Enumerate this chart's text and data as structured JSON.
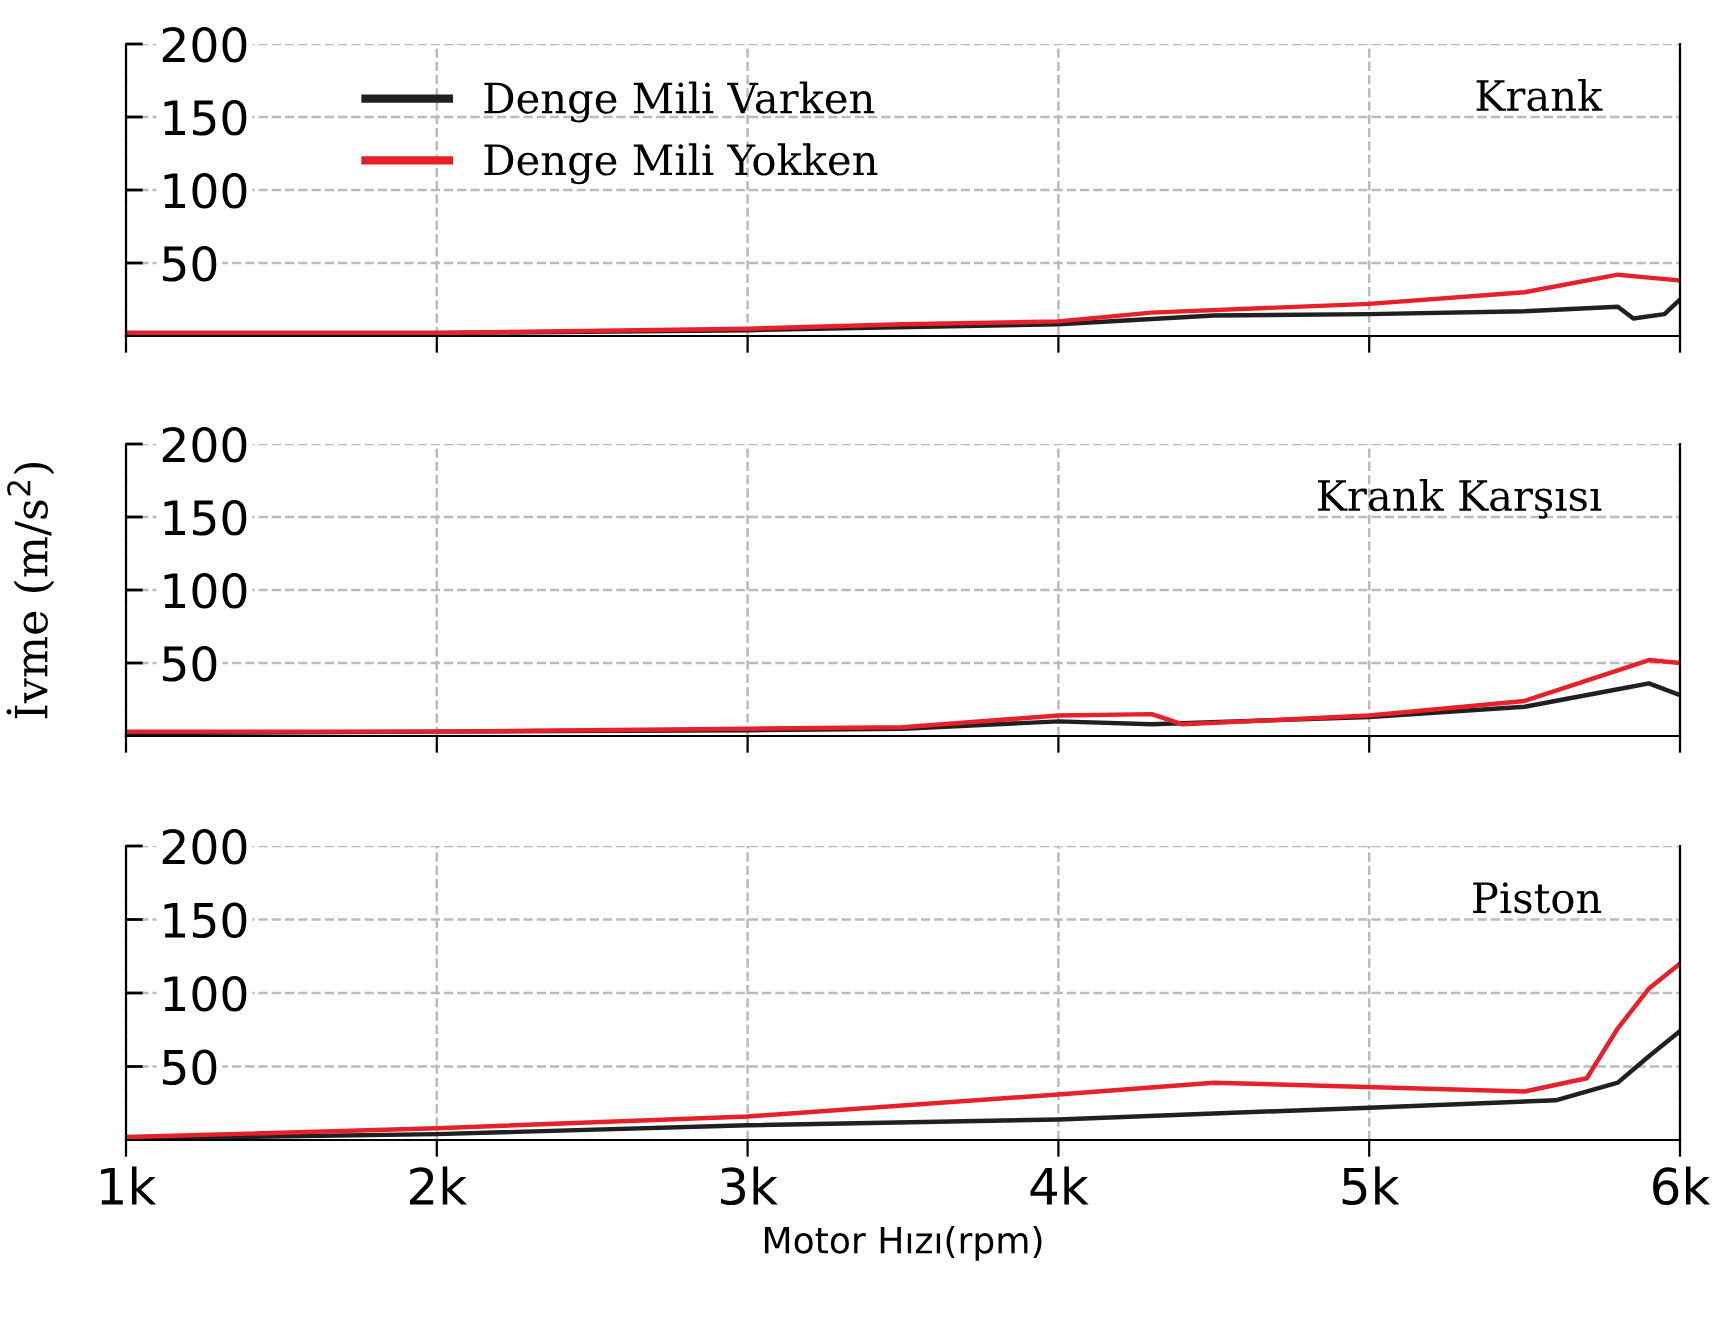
{
  "chart_data": [
    {
      "type": "line",
      "xlim": [
        1000,
        6000
      ],
      "xticks": [
        {
          "value": 1000,
          "label": null
        },
        {
          "value": 2000,
          "label": null
        },
        {
          "value": 3000,
          "label": null
        },
        {
          "value": 4000,
          "label": null
        },
        {
          "value": 5000,
          "label": null
        },
        {
          "value": 6000,
          "label": null
        }
      ],
      "ylim": [
        0,
        200
      ],
      "yticks": [
        50,
        100,
        150,
        200
      ],
      "tick_labels": "y",
      "grid": true,
      "legend": "top left",
      "annotations": [
        "Krank"
      ],
      "series": [
        {
          "name": "Denge Mili Varken",
          "color": "#202020",
          "x": [
            1000,
            2000,
            3000,
            4000,
            4500,
            5000,
            5500,
            5800,
            5850,
            5950,
            6000
          ],
          "values": [
            2,
            2,
            4,
            8,
            14,
            15,
            17,
            20,
            12,
            15,
            25
          ]
        },
        {
          "name": "Denge Mili Yokken",
          "color": "#e8202a",
          "x": [
            1000,
            2000,
            3000,
            3500,
            4000,
            4300,
            5000,
            5500,
            5800,
            5900,
            6000
          ],
          "values": [
            2,
            2,
            5,
            8,
            10,
            16,
            22,
            30,
            42,
            40,
            38
          ]
        }
      ]
    },
    {
      "type": "line",
      "xlim": [
        1000,
        6000
      ],
      "xticks": [
        {
          "value": 1000,
          "label": null
        },
        {
          "value": 2000,
          "label": null
        },
        {
          "value": 3000,
          "label": null
        },
        {
          "value": 4000,
          "label": null
        },
        {
          "value": 5000,
          "label": null
        },
        {
          "value": 6000,
          "label": null
        }
      ],
      "ylim": [
        0,
        200
      ],
      "yticks": [
        50,
        100,
        150,
        200
      ],
      "tick_labels": "y",
      "grid": true,
      "ylabel": "İvme (m/s$^{2}$)",
      "annotations": [
        "Krank Karşısı"
      ],
      "series": [
        {
          "color": "#202020",
          "x": [
            1000,
            2000,
            3000,
            3500,
            4000,
            4300,
            5000,
            5500,
            5800,
            5900,
            6000
          ],
          "values": [
            2,
            3,
            4,
            5,
            10,
            8,
            13,
            20,
            32,
            36,
            28
          ]
        },
        {
          "color": "#e8202a",
          "x": [
            1000,
            2000,
            3000,
            3500,
            4000,
            4300,
            4400,
            5000,
            5500,
            5800,
            5900,
            6000
          ],
          "values": [
            3,
            3,
            5,
            6,
            14,
            15,
            8,
            14,
            24,
            45,
            52,
            50
          ]
        }
      ]
    },
    {
      "type": "line",
      "xlim": [
        1000,
        6000
      ],
      "xticks": [
        {
          "value": 1000,
          "label": "1k"
        },
        {
          "value": 2000,
          "label": "2k"
        },
        {
          "value": 3000,
          "label": "3k"
        },
        {
          "value": 4000,
          "label": "4k"
        },
        {
          "value": 5000,
          "label": "5k"
        },
        {
          "value": 6000,
          "label": "6k"
        }
      ],
      "ylim": [
        0,
        200
      ],
      "yticks": [
        50,
        100,
        150,
        200
      ],
      "grid": true,
      "xlabel": "Motor Hızı(rpm)",
      "annotations": [
        "Piston"
      ],
      "series": [
        {
          "color": "#202020",
          "x": [
            1000,
            2000,
            3000,
            4000,
            5000,
            5600,
            5800,
            5900,
            6000
          ],
          "values": [
            1,
            4,
            10,
            14,
            22,
            27,
            39,
            57,
            74
          ]
        },
        {
          "color": "#e8202a",
          "x": [
            1000,
            2000,
            3000,
            4000,
            4500,
            5500,
            5700,
            5800,
            5900,
            6000
          ],
          "values": [
            2,
            8,
            16,
            31,
            39,
            33,
            42,
            76,
            103,
            120
          ]
        }
      ]
    }
  ]
}
